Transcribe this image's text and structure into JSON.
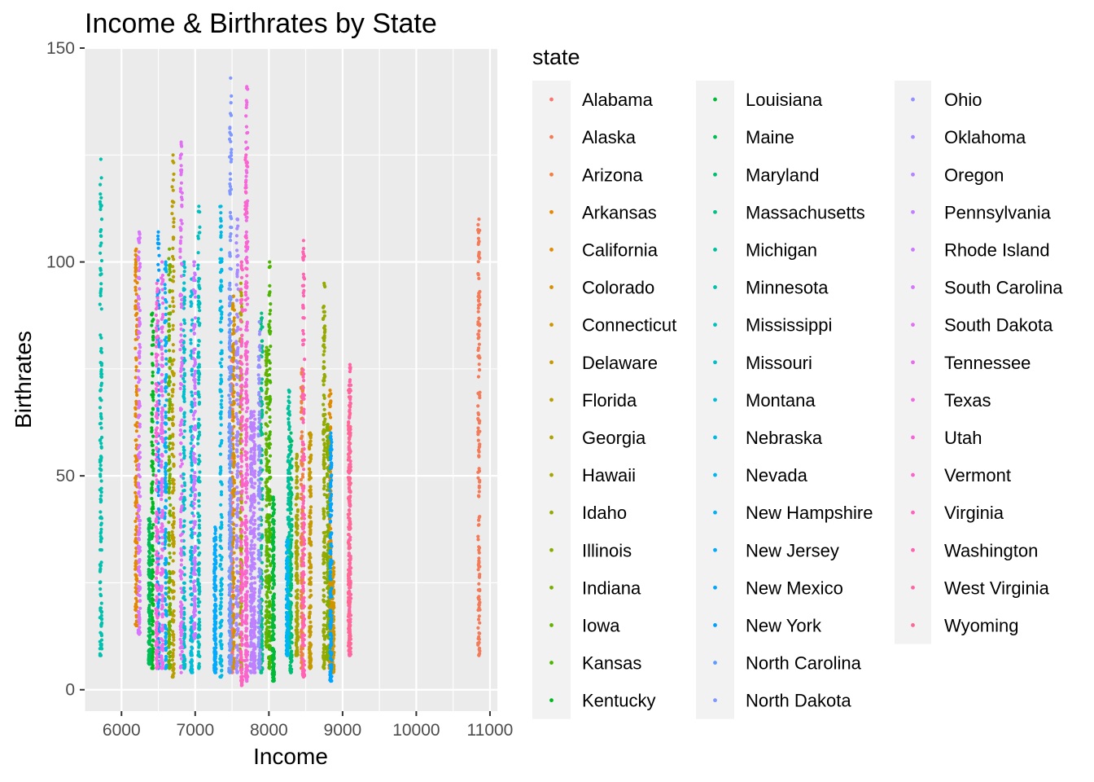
{
  "chart_data": {
    "type": "scatter",
    "title": "Income & Birthrates by State",
    "xlabel": "Income",
    "ylabel": "Birthrates",
    "legend_title": "state",
    "legend_position": "right",
    "xlim": [
      5500,
      11100
    ],
    "ylim": [
      -5,
      150
    ],
    "x_ticks": [
      6000,
      7000,
      8000,
      9000,
      10000,
      11000
    ],
    "y_ticks": [
      0,
      50,
      100,
      150
    ],
    "grid": true,
    "series": [
      {
        "name": "Alabama",
        "color": "#F8766D",
        "income": 7500,
        "min": 4,
        "max": 80
      },
      {
        "name": "Alaska",
        "color": "#F37B59",
        "income": 10850,
        "min": 8,
        "max": 110
      },
      {
        "name": "Arizona",
        "color": "#ED8141",
        "income": 8450,
        "min": 5,
        "max": 75
      },
      {
        "name": "Arkansas",
        "color": "#E58700",
        "income": 6200,
        "min": 15,
        "max": 103
      },
      {
        "name": "California",
        "color": "#DE8C00",
        "income": 8830,
        "min": 5,
        "max": 70
      },
      {
        "name": "Colorado",
        "color": "#D59100",
        "income": 7520,
        "min": 5,
        "max": 92
      },
      {
        "name": "Connecticut",
        "color": "#CD9600",
        "income": 8870,
        "min": 4,
        "max": 30
      },
      {
        "name": "Delaware",
        "color": "#C49A00",
        "income": 8560,
        "min": 5,
        "max": 60
      },
      {
        "name": "Florida",
        "color": "#BA9E00",
        "income": 6700,
        "min": 3,
        "max": 125
      },
      {
        "name": "Georgia",
        "color": "#AEA200",
        "income": 7620,
        "min": 5,
        "max": 95
      },
      {
        "name": "Hawaii",
        "color": "#A3A500",
        "income": 8380,
        "min": 8,
        "max": 55
      },
      {
        "name": "Idaho",
        "color": "#96A900",
        "income": 8750,
        "min": 5,
        "max": 95
      },
      {
        "name": "Illinois",
        "color": "#87AC00",
        "income": 8800,
        "min": 7,
        "max": 62
      },
      {
        "name": "Indiana",
        "color": "#77AF00",
        "income": 6650,
        "min": 5,
        "max": 103
      },
      {
        "name": "Iowa",
        "color": "#64B200",
        "income": 7970,
        "min": 10,
        "max": 80
      },
      {
        "name": "Kansas",
        "color": "#4CB500",
        "income": 8010,
        "min": 5,
        "max": 100
      },
      {
        "name": "Kentucky",
        "color": "#00B81F",
        "income": 6420,
        "min": 5,
        "max": 88
      },
      {
        "name": "Louisiana",
        "color": "#00BA38",
        "income": 8060,
        "min": 2,
        "max": 45
      },
      {
        "name": "Maine",
        "color": "#00BC56",
        "income": 6380,
        "min": 6,
        "max": 40
      },
      {
        "name": "Maryland",
        "color": "#00BE70",
        "income": 8300,
        "min": 4,
        "max": 60
      },
      {
        "name": "Massachusetts",
        "color": "#00BF87",
        "income": 7900,
        "min": 4,
        "max": 88
      },
      {
        "name": "Michigan",
        "color": "#00C09C",
        "income": 8270,
        "min": 10,
        "max": 70
      },
      {
        "name": "Minnesota",
        "color": "#00C1AE",
        "income": 5720,
        "min": 8,
        "max": 124
      },
      {
        "name": "Mississippi",
        "color": "#00C0BF",
        "income": 7050,
        "min": 5,
        "max": 113
      },
      {
        "name": "Missouri",
        "color": "#00BFCD",
        "income": 6850,
        "min": 5,
        "max": 100
      },
      {
        "name": "Montana",
        "color": "#00BDDA",
        "income": 6950,
        "min": 4,
        "max": 96
      },
      {
        "name": "Nebraska",
        "color": "#00BAE6",
        "income": 7350,
        "min": 3,
        "max": 113
      },
      {
        "name": "Nevada",
        "color": "#00B6F0",
        "income": 8250,
        "min": 8,
        "max": 35
      },
      {
        "name": "New Hampshire",
        "color": "#00B1F7",
        "income": 6600,
        "min": 5,
        "max": 100
      },
      {
        "name": "New Jersey",
        "color": "#00ABFD",
        "income": 7270,
        "min": 4,
        "max": 38
      },
      {
        "name": "New Mexico",
        "color": "#00A5FF",
        "income": 8840,
        "min": 2,
        "max": 60
      },
      {
        "name": "New York",
        "color": "#009FFF",
        "income": 6500,
        "min": 5,
        "max": 107
      },
      {
        "name": "North Carolina",
        "color": "#5D9CFF",
        "income": 7470,
        "min": 4,
        "max": 95
      },
      {
        "name": "North Dakota",
        "color": "#7F97FF",
        "income": 7480,
        "min": 5,
        "max": 143
      },
      {
        "name": "Ohio",
        "color": "#9590FF",
        "income": 7870,
        "min": 5,
        "max": 86
      },
      {
        "name": "Oklahoma",
        "color": "#A68AFF",
        "income": 7570,
        "min": 4,
        "max": 110
      },
      {
        "name": "Oregon",
        "color": "#B584FF",
        "income": 7760,
        "min": 4,
        "max": 65
      },
      {
        "name": "Pennsylvania",
        "color": "#C27EFF",
        "income": 7800,
        "min": 4,
        "max": 65
      },
      {
        "name": "Rhode Island",
        "color": "#CD79FF",
        "income": 6990,
        "min": 12,
        "max": 100
      },
      {
        "name": "South Carolina",
        "color": "#D874FD",
        "income": 6240,
        "min": 13,
        "max": 107
      },
      {
        "name": "South Dakota",
        "color": "#E270F5",
        "income": 6810,
        "min": 4,
        "max": 128
      },
      {
        "name": "Tennessee",
        "color": "#EA6CEC",
        "income": 6550,
        "min": 5,
        "max": 100
      },
      {
        "name": "Texas",
        "color": "#F169E3",
        "income": 7700,
        "min": 2,
        "max": 141
      },
      {
        "name": "Utah",
        "color": "#F766D8",
        "income": 6480,
        "min": 5,
        "max": 95
      },
      {
        "name": "Vermont",
        "color": "#FC64CD",
        "income": 7690,
        "min": 3,
        "max": 125
      },
      {
        "name": "Virginia",
        "color": "#FF62BF",
        "income": 7630,
        "min": 1,
        "max": 100
      },
      {
        "name": "Washington",
        "color": "#FF63B2",
        "income": 8470,
        "min": 3,
        "max": 105
      },
      {
        "name": "West Virginia",
        "color": "#FF65A4",
        "income": 9100,
        "min": 8,
        "max": 76
      },
      {
        "name": "Wyoming",
        "color": "#FF6794",
        "income": 9090,
        "min": 9,
        "max": 70
      }
    ]
  }
}
